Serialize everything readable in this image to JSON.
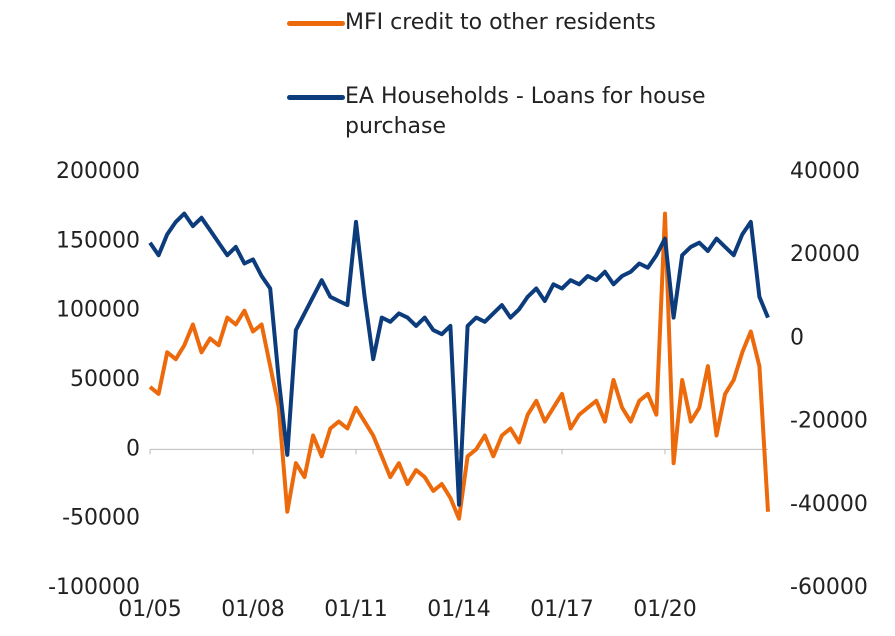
{
  "chart_data": {
    "type": "line",
    "categories": [
      "01/05",
      null,
      null,
      null,
      null,
      null,
      null,
      null,
      null,
      null,
      null,
      null,
      "01/08",
      null,
      null,
      null,
      null,
      null,
      null,
      null,
      null,
      null,
      null,
      null,
      "01/11",
      null,
      null,
      null,
      null,
      null,
      null,
      null,
      null,
      null,
      null,
      null,
      "01/14",
      null,
      null,
      null,
      null,
      null,
      null,
      null,
      null,
      null,
      null,
      null,
      "01/17",
      null,
      null,
      null,
      null,
      null,
      null,
      null,
      null,
      null,
      null,
      null,
      "01/20",
      null,
      null,
      null,
      null,
      null,
      null,
      null,
      null,
      null,
      null,
      null,
      null
    ],
    "series": [
      {
        "name": "MFI credit to other residents",
        "color": "#ec6a0c",
        "axis": "y",
        "values": [
          45000,
          40000,
          70000,
          65000,
          75000,
          90000,
          70000,
          80000,
          75000,
          95000,
          90000,
          100000,
          85000,
          90000,
          60000,
          30000,
          -45000,
          -10000,
          -20000,
          10000,
          -5000,
          15000,
          20000,
          15000,
          30000,
          20000,
          10000,
          -5000,
          -20000,
          -10000,
          -25000,
          -15000,
          -20000,
          -30000,
          -25000,
          -35000,
          -50000,
          -5000,
          0,
          10000,
          -5000,
          10000,
          15000,
          5000,
          25000,
          35000,
          20000,
          30000,
          40000,
          15000,
          25000,
          30000,
          35000,
          20000,
          50000,
          30000,
          20000,
          35000,
          40000,
          25000,
          170000,
          -10000,
          50000,
          20000,
          30000,
          60000,
          10000,
          40000,
          50000,
          70000,
          85000,
          60000,
          -45000
        ]
      },
      {
        "name": "EA Households - Loans for house purchase",
        "color": "#0c3c7c",
        "axis": "y2",
        "values": [
          23000,
          20000,
          25000,
          28000,
          30000,
          27000,
          29000,
          26000,
          23000,
          20000,
          22000,
          18000,
          19000,
          15000,
          12000,
          -10000,
          -28000,
          2000,
          6000,
          10000,
          14000,
          10000,
          9000,
          8000,
          28000,
          10000,
          -5000,
          5000,
          4000,
          6000,
          5000,
          3000,
          5000,
          2000,
          1000,
          3000,
          -40000,
          3000,
          5000,
          4000,
          6000,
          8000,
          5000,
          7000,
          10000,
          12000,
          9000,
          13000,
          12000,
          14000,
          13000,
          15000,
          14000,
          16000,
          13000,
          15000,
          16000,
          18000,
          17000,
          20000,
          24000,
          5000,
          20000,
          22000,
          23000,
          21000,
          24000,
          22000,
          20000,
          25000,
          28000,
          10000,
          5000
        ]
      }
    ],
    "ylim": [
      -100000,
      200000
    ],
    "yticks": [
      -100000,
      -50000,
      0,
      50000,
      100000,
      150000,
      200000
    ],
    "y2lim": [
      -60000,
      40000
    ],
    "y2ticks": [
      -60000,
      -40000,
      -20000,
      0,
      20000,
      40000
    ],
    "grid": false
  }
}
